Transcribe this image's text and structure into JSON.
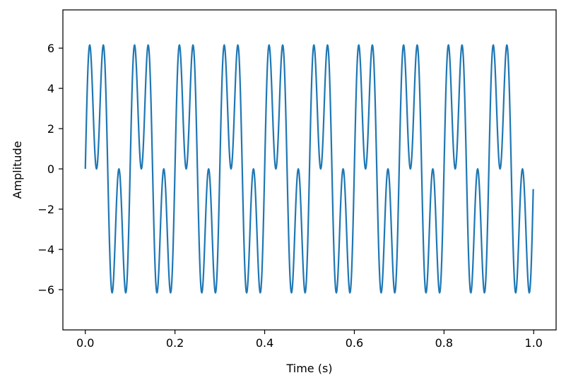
{
  "chart_data": {
    "type": "line",
    "title": "",
    "xlabel": "Time (s)",
    "ylabel": "Amplitude",
    "xlim": [
      -0.05,
      1.05
    ],
    "ylim": [
      -8.0,
      7.9
    ],
    "x_ticks": [
      0.0,
      0.2,
      0.4,
      0.6,
      0.8,
      1.0
    ],
    "x_tick_labels": [
      "0.0",
      "0.2",
      "0.4",
      "0.6",
      "0.8",
      "1.0"
    ],
    "y_ticks": [
      -6,
      -4,
      -2,
      0,
      2,
      4,
      6
    ],
    "y_tick_labels": [
      "−6",
      "−4",
      "−2",
      "0",
      "2",
      "4",
      "6"
    ],
    "grid": false,
    "legend": "none",
    "line_color": "#1f77b4",
    "series": [
      {
        "components": [
          {
            "amplitude": 4.0,
            "frequency_hz": 10
          },
          {
            "amplitude": 4.0,
            "frequency_hz": 30
          }
        ],
        "x_range": [
          0.0,
          0.999
        ],
        "sample_count": 1000
      }
    ]
  }
}
